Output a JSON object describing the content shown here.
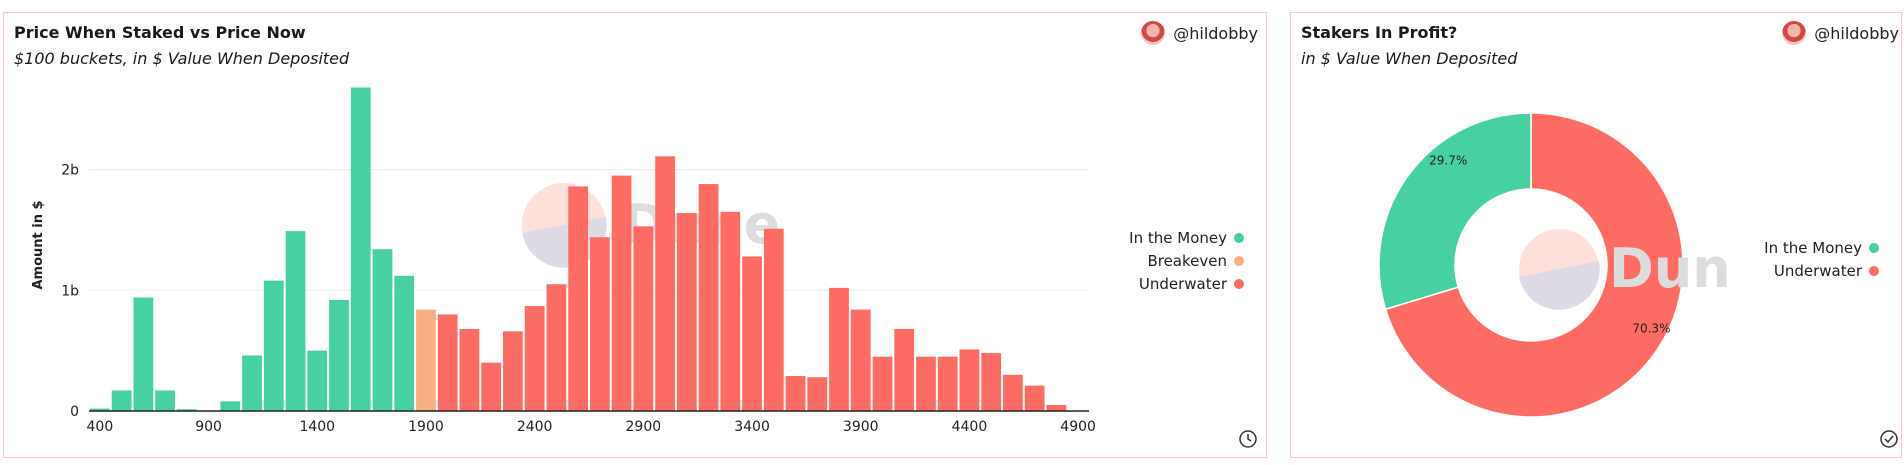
{
  "left_panel": {
    "title": "Price When Staked vs Price Now",
    "subtitle": "$100 buckets, in $ Value When Deposited",
    "author": "@hildobby",
    "watermark": "Dune",
    "legend": [
      {
        "name": "In the Money",
        "color": "#47d1a0"
      },
      {
        "name": "Breakeven",
        "color": "#f8ae83"
      },
      {
        "name": "Underwater",
        "color": "#fd6b65"
      }
    ]
  },
  "right_panel": {
    "title": "Stakers In Profit?",
    "subtitle": "in $ Value When Deposited",
    "author": "@hildobby",
    "watermark": "Dune",
    "legend": [
      {
        "name": "In the Money",
        "color": "#47d1a0"
      },
      {
        "name": "Underwater",
        "color": "#fd6b65"
      }
    ]
  },
  "chart_data": [
    {
      "type": "bar",
      "title": "Price When Staked vs Price Now",
      "subtitle": "$100 buckets, in $ Value When Deposited",
      "xlabel": "",
      "ylabel": "Amount in $",
      "xticks": [
        "400",
        "900",
        "1400",
        "1900",
        "2400",
        "2900",
        "3400",
        "3900",
        "4400",
        "4900"
      ],
      "yticks": [
        "0",
        "1b",
        "2b"
      ],
      "ylim": [
        0,
        2800000000
      ],
      "xlim": [
        350,
        4950
      ],
      "grid": true,
      "legend_position": "right",
      "categories": [
        400,
        500,
        600,
        700,
        800,
        900,
        1000,
        1100,
        1200,
        1300,
        1400,
        1500,
        1600,
        1700,
        1800,
        1900,
        2000,
        2100,
        2200,
        2300,
        2400,
        2500,
        2600,
        2700,
        2800,
        2900,
        3000,
        3100,
        3200,
        3300,
        3400,
        3500,
        3600,
        3700,
        3800,
        3900,
        4000,
        4100,
        4200,
        4300,
        4400,
        4500,
        4600,
        4700,
        4800
      ],
      "values": [
        20000000,
        170000000,
        940000000,
        170000000,
        15000000,
        5000000,
        80000000,
        460000000,
        1080000000,
        1490000000,
        500000000,
        920000000,
        2680000000,
        1340000000,
        1120000000,
        840000000,
        800000000,
        680000000,
        400000000,
        660000000,
        870000000,
        1050000000,
        1860000000,
        1440000000,
        1950000000,
        1530000000,
        2110000000,
        1640000000,
        1880000000,
        1650000000,
        1280000000,
        1510000000,
        290000000,
        280000000,
        1020000000,
        840000000,
        450000000,
        680000000,
        450000000,
        450000000,
        510000000,
        480000000,
        300000000,
        210000000,
        50000000
      ],
      "status": [
        "In the Money",
        "In the Money",
        "In the Money",
        "In the Money",
        "In the Money",
        "In the Money",
        "In the Money",
        "In the Money",
        "In the Money",
        "In the Money",
        "In the Money",
        "In the Money",
        "In the Money",
        "In the Money",
        "In the Money",
        "Breakeven",
        "Underwater",
        "Underwater",
        "Underwater",
        "Underwater",
        "Underwater",
        "Underwater",
        "Underwater",
        "Underwater",
        "Underwater",
        "Underwater",
        "Underwater",
        "Underwater",
        "Underwater",
        "Underwater",
        "Underwater",
        "Underwater",
        "Underwater",
        "Underwater",
        "Underwater",
        "Underwater",
        "Underwater",
        "Underwater",
        "Underwater",
        "Underwater",
        "Underwater",
        "Underwater",
        "Underwater",
        "Underwater",
        "Underwater"
      ]
    },
    {
      "type": "pie",
      "title": "Stakers In Profit?",
      "subtitle": "in $ Value When Deposited",
      "donut": true,
      "legend_position": "right",
      "slices": [
        {
          "name": "In the Money",
          "value": 29.7,
          "label": "29.7%",
          "color": "#47d1a0"
        },
        {
          "name": "Underwater",
          "value": 70.3,
          "label": "70.3%",
          "color": "#fd6b65"
        }
      ]
    }
  ]
}
